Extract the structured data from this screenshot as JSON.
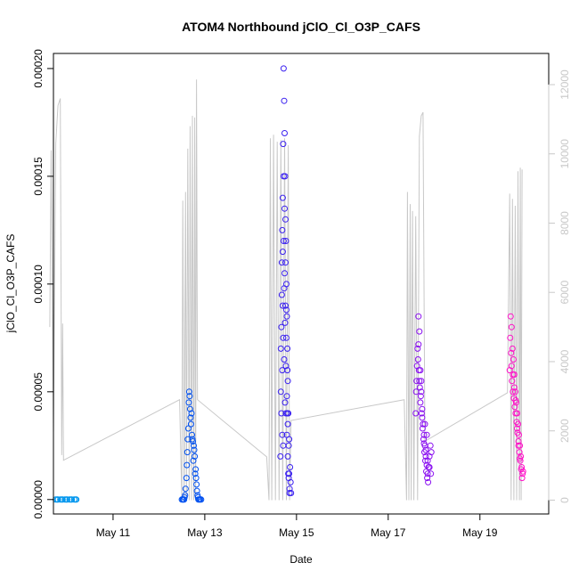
{
  "chart_data": {
    "type": "scatter",
    "title": "ATOM4 Northbound jClO_Cl_O3P_CAFS",
    "xlabel": "Date",
    "ylabel": "jClO_Cl_O3P_CAFS",
    "x_unit": "day of May",
    "xlim": [
      9.7,
      20.5
    ],
    "ylim": [
      -6.7e-06,
      0.000207
    ],
    "x_ticks": [
      {
        "value": 11,
        "label": "May 11"
      },
      {
        "value": 13,
        "label": "May 13"
      },
      {
        "value": 15,
        "label": "May 15"
      },
      {
        "value": 17,
        "label": "May 17"
      },
      {
        "value": 19,
        "label": "May 19"
      }
    ],
    "y_ticks": [
      {
        "value": 0.0,
        "label": "0.00000"
      },
      {
        "value": 5e-05,
        "label": "0.00005"
      },
      {
        "value": 0.0001,
        "label": "0.00010"
      },
      {
        "value": 0.00015,
        "label": "0.00015"
      },
      {
        "value": 0.0002,
        "label": "0.00020"
      }
    ],
    "y2_lim": [
      -400,
      12900
    ],
    "y2_ticks": [
      {
        "value": 0,
        "label": "0"
      },
      {
        "value": 2000,
        "label": "2000"
      },
      {
        "value": 4000,
        "label": "4000"
      },
      {
        "value": 6000,
        "label": "6000"
      },
      {
        "value": 8000,
        "label": "8000"
      },
      {
        "value": 10000,
        "label": "10000"
      },
      {
        "value": 12000,
        "label": "12000"
      }
    ],
    "grid": false,
    "legend": "none",
    "secondary_color": "#c8c8c8",
    "secondary_series": {
      "axis": "right",
      "points": [
        [
          9.62,
          5000
        ],
        [
          9.65,
          10100
        ],
        [
          9.7,
          1950
        ],
        [
          9.75,
          10300
        ],
        [
          9.8,
          11400
        ],
        [
          9.85,
          11600
        ],
        [
          9.88,
          1300
        ],
        [
          9.9,
          5100
        ],
        [
          9.92,
          1150
        ],
        [
          12.45,
          2900
        ],
        [
          12.5,
          0
        ],
        [
          12.52,
          8650
        ],
        [
          12.55,
          0
        ],
        [
          12.58,
          8900
        ],
        [
          12.6,
          0
        ],
        [
          12.63,
          10150
        ],
        [
          12.66,
          0
        ],
        [
          12.68,
          10800
        ],
        [
          12.71,
          0
        ],
        [
          12.73,
          11100
        ],
        [
          12.76,
          0
        ],
        [
          12.78,
          11050
        ],
        [
          12.8,
          0
        ],
        [
          12.82,
          12150
        ],
        [
          12.84,
          2900
        ],
        [
          14.35,
          1250
        ],
        [
          14.4,
          0
        ],
        [
          14.43,
          10450
        ],
        [
          14.46,
          0
        ],
        [
          14.5,
          10550
        ],
        [
          14.54,
          0
        ],
        [
          14.58,
          10350
        ],
        [
          14.62,
          0
        ],
        [
          14.66,
          10400
        ],
        [
          14.7,
          0
        ],
        [
          14.74,
          10450
        ],
        [
          14.78,
          0
        ],
        [
          14.82,
          10250
        ],
        [
          14.85,
          0
        ],
        [
          14.88,
          2300
        ],
        [
          17.35,
          2900
        ],
        [
          17.4,
          0
        ],
        [
          17.42,
          8900
        ],
        [
          17.45,
          0
        ],
        [
          17.48,
          8550
        ],
        [
          17.5,
          0
        ],
        [
          17.53,
          8350
        ],
        [
          17.56,
          0
        ],
        [
          17.6,
          8200
        ],
        [
          17.64,
          0
        ],
        [
          17.68,
          10500
        ],
        [
          17.72,
          11100
        ],
        [
          17.76,
          11200
        ],
        [
          17.8,
          1700
        ],
        [
          19.6,
          3100
        ],
        [
          19.65,
          8850
        ],
        [
          19.68,
          0
        ],
        [
          19.71,
          8700
        ],
        [
          19.74,
          0
        ],
        [
          19.77,
          8500
        ],
        [
          19.8,
          0
        ],
        [
          19.83,
          9500
        ],
        [
          19.86,
          0
        ],
        [
          19.88,
          9600
        ],
        [
          19.9,
          0
        ],
        [
          19.92,
          9550
        ]
      ]
    },
    "series": [
      {
        "color": "#0096ee",
        "points": [
          [
            9.75,
            0.0
          ],
          [
            9.8,
            0.0
          ],
          [
            9.85,
            0.0
          ],
          [
            9.9,
            0.0
          ],
          [
            9.95,
            0.0
          ],
          [
            10.0,
            0.0
          ],
          [
            10.05,
            0.0
          ],
          [
            10.1,
            0.0
          ],
          [
            10.15,
            0.0
          ],
          [
            10.2,
            0.0
          ],
          [
            9.78,
            0.0
          ],
          [
            9.88,
            0.0
          ],
          [
            9.98,
            0.0
          ],
          [
            10.08,
            0.0
          ],
          [
            10.18,
            0.0
          ]
        ]
      },
      {
        "color": "#0050f0",
        "points": [
          [
            12.5,
            0.0
          ],
          [
            12.52,
            0.0
          ],
          [
            12.55,
            0.0
          ],
          [
            12.57,
            2e-06
          ],
          [
            12.6,
            1e-05
          ],
          [
            12.62,
            2.2e-05
          ],
          [
            12.64,
            3.3e-05
          ],
          [
            12.66,
            5e-05
          ],
          [
            12.67,
            4.8e-05
          ],
          [
            12.68,
            4.2e-05
          ],
          [
            12.7,
            3.5e-05
          ],
          [
            12.72,
            3e-05
          ],
          [
            12.74,
            2.7e-05
          ],
          [
            12.76,
            2.5e-05
          ],
          [
            12.78,
            2e-05
          ],
          [
            12.8,
            1.4e-05
          ],
          [
            12.82,
            7e-06
          ],
          [
            12.84,
            2e-06
          ],
          [
            12.86,
            0.0
          ],
          [
            12.88,
            0.0
          ],
          [
            12.9,
            0.0
          ],
          [
            12.92,
            0.0
          ],
          [
            12.65,
            4.5e-05
          ],
          [
            12.69,
            3.8e-05
          ],
          [
            12.73,
            2.8e-05
          ],
          [
            12.77,
            2.3e-05
          ],
          [
            12.63,
            2.8e-05
          ],
          [
            12.61,
            1.6e-05
          ],
          [
            12.58,
            5e-06
          ],
          [
            12.81,
            1e-05
          ],
          [
            12.83,
            4e-06
          ],
          [
            12.75,
            1.8e-05
          ],
          [
            12.71,
            4e-05
          ],
          [
            12.79,
            1.2e-05
          ],
          [
            12.85,
            1e-06
          ],
          [
            12.53,
            0.0
          ],
          [
            12.56,
            1e-06
          ]
        ]
      },
      {
        "color": "#3a20f0",
        "points": [
          [
            14.65,
            2e-05
          ],
          [
            14.66,
            5e-05
          ],
          [
            14.67,
            8e-05
          ],
          [
            14.68,
            0.00011
          ],
          [
            14.69,
            0.000125
          ],
          [
            14.7,
            0.00014
          ],
          [
            14.71,
            0.000165
          ],
          [
            14.72,
            0.0002
          ],
          [
            14.73,
            0.000185
          ],
          [
            14.74,
            0.00017
          ],
          [
            14.75,
            0.00015
          ],
          [
            14.76,
            0.00013
          ],
          [
            14.77,
            0.00012
          ],
          [
            14.78,
            0.0001
          ],
          [
            14.79,
            8.5e-05
          ],
          [
            14.8,
            7e-05
          ],
          [
            14.81,
            5.5e-05
          ],
          [
            14.82,
            4e-05
          ],
          [
            14.83,
            2.5e-05
          ],
          [
            14.84,
            1.2e-05
          ],
          [
            14.85,
            5e-06
          ],
          [
            14.86,
            1.5e-05
          ],
          [
            14.68,
            9.5e-05
          ],
          [
            14.7,
            0.000115
          ],
          [
            14.72,
            0.00012
          ],
          [
            14.74,
            0.000105
          ],
          [
            14.76,
            9e-05
          ],
          [
            14.78,
            7.5e-05
          ],
          [
            14.8,
            6e-05
          ],
          [
            14.69,
            6e-05
          ],
          [
            14.71,
            7.5e-05
          ],
          [
            14.73,
            6.5e-05
          ],
          [
            14.75,
            4.5e-05
          ],
          [
            14.77,
            4e-05
          ],
          [
            14.79,
            3e-05
          ],
          [
            14.81,
            2e-05
          ],
          [
            14.83,
            1e-05
          ],
          [
            14.85,
            3e-06
          ],
          [
            14.87,
            8e-06
          ],
          [
            14.88,
            3e-06
          ],
          [
            14.67,
            4e-05
          ],
          [
            14.69,
            3e-05
          ],
          [
            14.71,
            2.5e-05
          ],
          [
            14.66,
            7e-05
          ],
          [
            14.74,
            0.000135
          ],
          [
            14.72,
            0.00015
          ],
          [
            14.76,
            0.00011
          ],
          [
            14.78,
            8.8e-05
          ],
          [
            14.8,
            4e-05
          ],
          [
            14.82,
            1.2e-05
          ],
          [
            14.7,
            9e-05
          ],
          [
            14.73,
            9.8e-05
          ],
          [
            14.75,
            8.2e-05
          ],
          [
            14.77,
            6.2e-05
          ],
          [
            14.79,
            4.8e-05
          ],
          [
            14.81,
            3.5e-05
          ],
          [
            14.84,
            2.8e-05
          ]
        ]
      },
      {
        "color": "#8a10f0",
        "points": [
          [
            17.6,
            4e-05
          ],
          [
            17.62,
            5.5e-05
          ],
          [
            17.64,
            7e-05
          ],
          [
            17.66,
            8.5e-05
          ],
          [
            17.68,
            7.8e-05
          ],
          [
            17.7,
            6e-05
          ],
          [
            17.72,
            5.5e-05
          ],
          [
            17.74,
            4.2e-05
          ],
          [
            17.76,
            3.5e-05
          ],
          [
            17.78,
            3e-05
          ],
          [
            17.8,
            2.5e-05
          ],
          [
            17.82,
            2e-05
          ],
          [
            17.84,
            1.6e-05
          ],
          [
            17.86,
            1.2e-05
          ],
          [
            17.88,
            1.5e-05
          ],
          [
            17.9,
            2e-05
          ],
          [
            17.92,
            2.5e-05
          ],
          [
            17.94,
            2.2e-05
          ],
          [
            17.65,
            6.5e-05
          ],
          [
            17.67,
            6e-05
          ],
          [
            17.69,
            5.2e-05
          ],
          [
            17.71,
            4.8e-05
          ],
          [
            17.73,
            4e-05
          ],
          [
            17.75,
            3.3e-05
          ],
          [
            17.77,
            2.8e-05
          ],
          [
            17.79,
            2.2e-05
          ],
          [
            17.81,
            1.8e-05
          ],
          [
            17.83,
            1.3e-05
          ],
          [
            17.85,
            1e-05
          ],
          [
            17.87,
            8e-06
          ],
          [
            17.61,
            5e-05
          ],
          [
            17.63,
            6.2e-05
          ],
          [
            17.66,
            7.2e-05
          ],
          [
            17.7,
            4.5e-05
          ],
          [
            17.74,
            3.8e-05
          ],
          [
            17.78,
            2.6e-05
          ],
          [
            17.82,
            2.3e-05
          ],
          [
            17.86,
            1.8e-05
          ],
          [
            17.9,
            1.5e-05
          ],
          [
            17.93,
            1.2e-05
          ],
          [
            17.84,
            3e-05
          ],
          [
            17.8,
            3.5e-05
          ],
          [
            17.72,
            5e-05
          ],
          [
            17.68,
            5.5e-05
          ]
        ]
      },
      {
        "color": "#ff10c8",
        "points": [
          [
            19.65,
            6e-05
          ],
          [
            19.67,
            8.5e-05
          ],
          [
            19.69,
            8e-05
          ],
          [
            19.71,
            7e-05
          ],
          [
            19.73,
            6.5e-05
          ],
          [
            19.75,
            5.8e-05
          ],
          [
            19.77,
            5e-05
          ],
          [
            19.79,
            4.5e-05
          ],
          [
            19.81,
            4e-05
          ],
          [
            19.83,
            3.5e-05
          ],
          [
            19.85,
            3e-05
          ],
          [
            19.87,
            2.5e-05
          ],
          [
            19.89,
            2e-05
          ],
          [
            19.91,
            1.5e-05
          ],
          [
            19.93,
            1.2e-05
          ],
          [
            19.66,
            7.5e-05
          ],
          [
            19.68,
            6.8e-05
          ],
          [
            19.7,
            5.5e-05
          ],
          [
            19.72,
            5e-05
          ],
          [
            19.74,
            4.7e-05
          ],
          [
            19.76,
            4.3e-05
          ],
          [
            19.78,
            4e-05
          ],
          [
            19.8,
            3.6e-05
          ],
          [
            19.82,
            3.1e-05
          ],
          [
            19.84,
            2.7e-05
          ],
          [
            19.86,
            2.2e-05
          ],
          [
            19.88,
            1.8e-05
          ],
          [
            19.9,
            1.4e-05
          ],
          [
            19.92,
            1e-05
          ],
          [
            19.94,
            1.3e-05
          ],
          [
            19.69,
            6.2e-05
          ],
          [
            19.72,
            5.8e-05
          ],
          [
            19.75,
            5.2e-05
          ],
          [
            19.78,
            4.6e-05
          ],
          [
            19.81,
            3.3e-05
          ],
          [
            19.84,
            2.5e-05
          ],
          [
            19.87,
            1.9e-05
          ]
        ]
      }
    ]
  }
}
